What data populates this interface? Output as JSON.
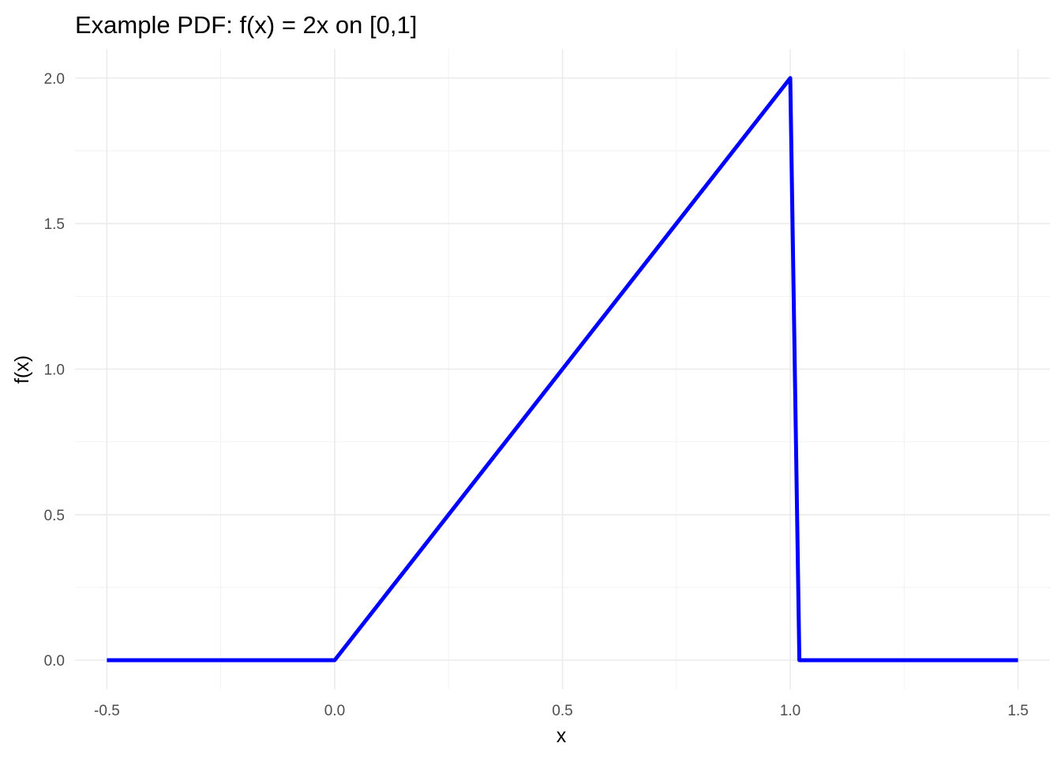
{
  "chart_data": {
    "type": "line",
    "title": "Example PDF: f(x) = 2x on [0,1]",
    "xlabel": "x",
    "ylabel": "f(x)",
    "xlim": [
      -0.57,
      1.57
    ],
    "ylim": [
      -0.1,
      2.1
    ],
    "xticks": [
      -0.5,
      0.0,
      0.5,
      1.0,
      1.5
    ],
    "xtick_labels": [
      "-0.5",
      "0.0",
      "0.5",
      "1.0",
      "1.5"
    ],
    "yticks": [
      0.0,
      0.5,
      1.0,
      1.5,
      2.0
    ],
    "ytick_labels": [
      "0.0",
      "0.5",
      "1.0",
      "1.5",
      "2.0"
    ],
    "x_minor_ticks": [
      -0.25,
      0.25,
      0.75,
      1.25
    ],
    "y_minor_ticks": [
      0.25,
      0.75,
      1.25,
      1.75
    ],
    "grid": true,
    "series": [
      {
        "color": "#0000ff",
        "x": [
          -0.5,
          0.0,
          0.25,
          0.5,
          0.75,
          1.0,
          1.02,
          1.5
        ],
        "y": [
          0.0,
          0.0,
          0.5,
          1.0,
          1.5,
          2.0,
          0.0,
          0.0
        ]
      }
    ]
  }
}
